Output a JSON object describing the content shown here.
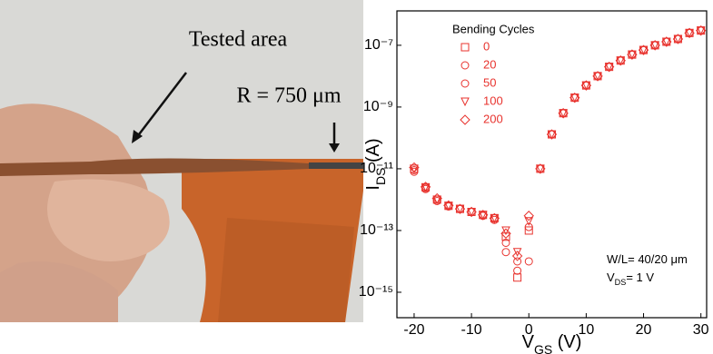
{
  "photo": {
    "annotations": [
      "Tested area",
      "R = 750 μm"
    ]
  },
  "chart_data": {
    "type": "scatter",
    "x": [
      -20,
      -18,
      -16,
      -14,
      -12,
      -10,
      -8,
      -6,
      -4,
      -2,
      0,
      2,
      4,
      6,
      8,
      10,
      12,
      14,
      16,
      18,
      20,
      22,
      24,
      26,
      28,
      30
    ],
    "series": [
      {
        "name": "0",
        "color": "#e8332e",
        "marker": "square",
        "values": [
          1e-11,
          2.5e-12,
          1e-12,
          6.3e-13,
          5e-13,
          4e-13,
          3.2e-13,
          2.5e-13,
          6.3e-14,
          3e-15,
          1e-13,
          1e-11,
          1.3e-10,
          6.3e-10,
          2e-09,
          5e-09,
          1e-08,
          2e-08,
          3.2e-08,
          5e-08,
          7e-08,
          1e-07,
          1.3e-07,
          1.6e-07,
          2.5e-07,
          3e-07
        ]
      },
      {
        "name": "20",
        "color": "#e8332e",
        "marker": "circle",
        "values": [
          8e-12,
          2.2e-12,
          9e-13,
          6e-13,
          5e-13,
          4e-13,
          3e-13,
          2.2e-13,
          4e-14,
          1e-14,
          1.3e-13,
          1e-11,
          1.3e-10,
          6.3e-10,
          2e-09,
          5e-09,
          1e-08,
          2e-08,
          3.2e-08,
          5e-08,
          7e-08,
          1e-07,
          1.3e-07,
          1.6e-07,
          2.5e-07,
          3e-07
        ]
      },
      {
        "name": "50",
        "color": "#e8332e",
        "marker": "circle",
        "values": [
          9e-12,
          2.4e-12,
          1e-12,
          6.3e-13,
          5e-13,
          4e-13,
          3e-13,
          2.5e-13,
          2e-14,
          5e-15,
          1e-14,
          1e-11,
          1.3e-10,
          6.3e-10,
          2e-09,
          5e-09,
          1e-08,
          2e-08,
          3.2e-08,
          5e-08,
          7e-08,
          1e-07,
          1.3e-07,
          1.6e-07,
          2.5e-07,
          3e-07
        ]
      },
      {
        "name": "100",
        "color": "#e8332e",
        "marker": "triangle-down",
        "values": [
          1e-11,
          2.5e-12,
          1e-12,
          6.3e-13,
          5e-13,
          4e-13,
          3.2e-13,
          2.5e-13,
          1e-13,
          2e-14,
          2e-13,
          1e-11,
          1.3e-10,
          6.3e-10,
          2e-09,
          5e-09,
          1e-08,
          2e-08,
          3.2e-08,
          5e-08,
          7e-08,
          1e-07,
          1.3e-07,
          1.6e-07,
          2.5e-07,
          3e-07
        ]
      },
      {
        "name": "200",
        "color": "#e8332e",
        "marker": "diamond",
        "values": [
          1.1e-11,
          2.6e-12,
          1.1e-12,
          6.5e-13,
          5e-13,
          4e-13,
          3.2e-13,
          2.5e-13,
          8e-14,
          1.5e-14,
          3e-13,
          1e-11,
          1.3e-10,
          6.3e-10,
          2e-09,
          5e-09,
          1e-08,
          2e-08,
          3.2e-08,
          5e-08,
          7e-08,
          1e-07,
          1.3e-07,
          1.6e-07,
          2.5e-07,
          3e-07
        ]
      }
    ],
    "legend_title": "Bending Cycles",
    "legend": "top-left",
    "xlabel": [
      "V",
      "GS",
      " (V)"
    ],
    "ylabel": [
      "I",
      "DS",
      " (A)"
    ],
    "annotations": [
      [
        "W/L= 40/20 μm"
      ],
      [
        "V",
        "DS",
        "= 1 V"
      ]
    ],
    "log_y": true,
    "xlim": [
      -23,
      31
    ],
    "xticks": [
      -20,
      -10,
      0,
      10,
      20,
      30
    ],
    "ylim": [
      1.5e-16,
      1.3e-06
    ],
    "yticks": [
      {
        "value": 1e-15,
        "label": "10⁻¹⁵"
      },
      {
        "value": 1e-13,
        "label": "10⁻¹³"
      },
      {
        "value": 1e-11,
        "label": "10⁻¹¹"
      },
      {
        "value": 1e-09,
        "label": "10⁻⁹"
      },
      {
        "value": 1e-07,
        "label": "10⁻⁷"
      }
    ]
  }
}
